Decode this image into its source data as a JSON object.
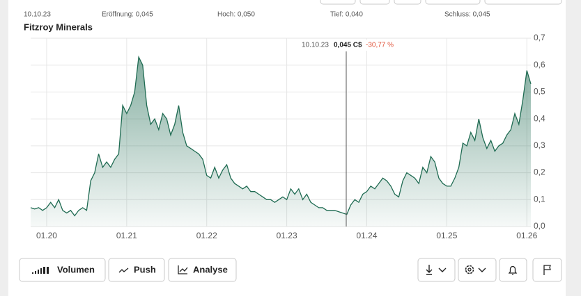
{
  "header": {
    "date": "10.10.23",
    "open": "Eröffnung: 0,045",
    "high": "Hoch: 0,050",
    "low": "Tief: 0,040",
    "close": "Schluss: 0,045"
  },
  "chart_data": {
    "type": "area",
    "title": "Fitzroy Minerals",
    "color": "#1f6b52",
    "grid": true,
    "tooltip": {
      "date": "10.10.23",
      "price": "0,045 C$",
      "change": "-30,77 %"
    },
    "categories": [
      null,
      null,
      null,
      null,
      "01.20",
      null,
      null,
      null,
      null,
      null,
      null,
      null,
      null,
      null,
      null,
      null,
      null,
      null,
      null,
      null,
      null,
      null,
      null,
      null,
      "01.21",
      null,
      null,
      null,
      null,
      null,
      null,
      null,
      null,
      null,
      null,
      null,
      null,
      null,
      null,
      null,
      null,
      null,
      null,
      null,
      "01.22",
      null,
      null,
      null,
      null,
      null,
      null,
      null,
      null,
      null,
      null,
      null,
      null,
      null,
      null,
      null,
      null,
      null,
      null,
      null,
      "01.23",
      null,
      null,
      null,
      null,
      null,
      null,
      null,
      null,
      null,
      null,
      null,
      null,
      null,
      null,
      null,
      null,
      null,
      null,
      null,
      "01.24",
      null,
      null,
      null,
      null,
      null,
      null,
      null,
      null,
      null,
      null,
      null,
      null,
      null,
      null,
      null,
      null,
      null,
      null,
      null,
      "01.25",
      null,
      null,
      null,
      null,
      null,
      null,
      null,
      null,
      null,
      null,
      null,
      null,
      null,
      null,
      null,
      null,
      null,
      null,
      null,
      "01.26",
      null
    ],
    "values": [
      0.07,
      0.065,
      0.07,
      0.06,
      0.07,
      0.09,
      0.07,
      0.1,
      0.06,
      0.05,
      0.06,
      0.04,
      0.06,
      0.07,
      0.06,
      0.17,
      0.2,
      0.27,
      0.22,
      0.24,
      0.22,
      0.25,
      0.27,
      0.45,
      0.42,
      0.45,
      0.5,
      0.63,
      0.6,
      0.45,
      0.38,
      0.4,
      0.36,
      0.42,
      0.4,
      0.34,
      0.38,
      0.45,
      0.35,
      0.3,
      0.29,
      0.28,
      0.27,
      0.25,
      0.19,
      0.18,
      0.22,
      0.18,
      0.21,
      0.23,
      0.18,
      0.16,
      0.15,
      0.14,
      0.15,
      0.13,
      0.13,
      0.12,
      0.11,
      0.1,
      0.1,
      0.09,
      0.1,
      0.11,
      0.1,
      0.14,
      0.12,
      0.14,
      0.1,
      0.12,
      0.09,
      0.08,
      0.07,
      0.07,
      0.06,
      0.06,
      0.06,
      0.055,
      0.05,
      0.045,
      0.08,
      0.1,
      0.09,
      0.12,
      0.13,
      0.15,
      0.14,
      0.16,
      0.18,
      0.17,
      0.15,
      0.12,
      0.11,
      0.17,
      0.2,
      0.19,
      0.18,
      0.16,
      0.22,
      0.2,
      0.26,
      0.24,
      0.18,
      0.16,
      0.15,
      0.15,
      0.18,
      0.22,
      0.31,
      0.3,
      0.35,
      0.32,
      0.4,
      0.33,
      0.29,
      0.32,
      0.28,
      0.3,
      0.31,
      0.34,
      0.36,
      0.42,
      0.38,
      0.47,
      0.58,
      0.53
    ],
    "ylim": [
      0,
      0.7
    ],
    "yticks": [
      {
        "value": 0,
        "label": "0,0"
      },
      {
        "value": 0.1,
        "label": "0,1"
      },
      {
        "value": 0.2,
        "label": "0,2"
      },
      {
        "value": 0.3,
        "label": "0,3"
      },
      {
        "value": 0.4,
        "label": "0,4"
      },
      {
        "value": 0.5,
        "label": "0,5"
      },
      {
        "value": 0.6,
        "label": "0,6"
      },
      {
        "value": 0.7,
        "label": "0,7"
      }
    ]
  },
  "toolbar": {
    "buttons": [
      "Volumen",
      "Push",
      "Analyse"
    ]
  }
}
